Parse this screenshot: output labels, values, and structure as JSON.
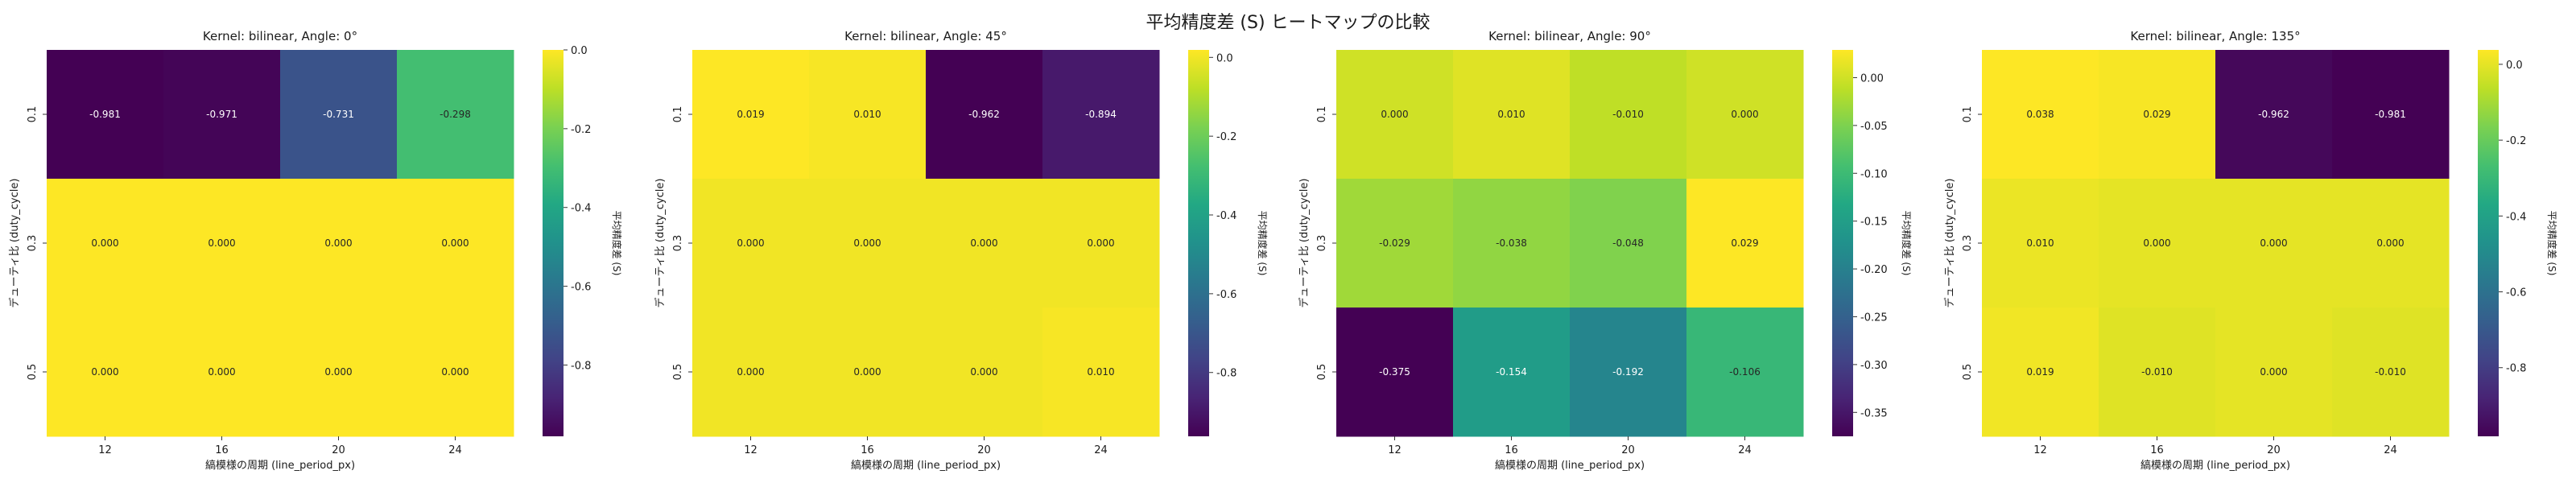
{
  "suptitle": "平均精度差 (S) ヒートマップの比較",
  "chart_data": [
    {
      "type": "heatmap",
      "title": "Kernel: bilinear, Angle: 0°",
      "xlabel": "縞模様の周期 (line_period_px)",
      "ylabel": "デューティ比 (duty_cycle)",
      "colorbar_label": "平均精度差 (S)",
      "x_categories": [
        "12",
        "16",
        "20",
        "24"
      ],
      "y_categories": [
        "0.1",
        "0.3",
        "0.5"
      ],
      "values": [
        [
          -0.981,
          -0.971,
          -0.731,
          -0.298
        ],
        [
          0.0,
          0.0,
          0.0,
          0.0
        ],
        [
          0.0,
          0.0,
          0.0,
          0.0
        ]
      ],
      "labels": [
        [
          "-0.981",
          "-0.971",
          "-0.731",
          "-0.298"
        ],
        [
          "0.000",
          "0.000",
          "0.000",
          "0.000"
        ],
        [
          "0.000",
          "0.000",
          "0.000",
          "0.000"
        ]
      ],
      "vmin": -0.981,
      "vmax": 0.0,
      "colorbar_ticks": [
        "0.0",
        "-0.2",
        "-0.4",
        "-0.6",
        "-0.8"
      ],
      "colormap": "viridis"
    },
    {
      "type": "heatmap",
      "title": "Kernel: bilinear, Angle: 45°",
      "xlabel": "縞模様の周期 (line_period_px)",
      "ylabel": "デューティ比 (duty_cycle)",
      "colorbar_label": "平均精度差 (S)",
      "x_categories": [
        "12",
        "16",
        "20",
        "24"
      ],
      "y_categories": [
        "0.1",
        "0.3",
        "0.5"
      ],
      "values": [
        [
          0.019,
          0.01,
          -0.962,
          -0.894
        ],
        [
          0.0,
          0.0,
          0.0,
          0.0
        ],
        [
          0.0,
          0.0,
          0.0,
          0.01
        ]
      ],
      "labels": [
        [
          "0.019",
          "0.010",
          "-0.962",
          "-0.894"
        ],
        [
          "0.000",
          "0.000",
          "0.000",
          "0.000"
        ],
        [
          "0.000",
          "0.000",
          "0.000",
          "0.010"
        ]
      ],
      "vmin": -0.962,
      "vmax": 0.019,
      "colorbar_ticks": [
        "0.0",
        "-0.2",
        "-0.4",
        "-0.6",
        "-0.8"
      ],
      "colormap": "viridis"
    },
    {
      "type": "heatmap",
      "title": "Kernel: bilinear, Angle: 90°",
      "xlabel": "縞模様の周期 (line_period_px)",
      "ylabel": "デューティ比 (duty_cycle)",
      "colorbar_label": "平均精度差 (S)",
      "x_categories": [
        "12",
        "16",
        "20",
        "24"
      ],
      "y_categories": [
        "0.1",
        "0.3",
        "0.5"
      ],
      "values": [
        [
          0.0,
          0.01,
          -0.01,
          0.0
        ],
        [
          -0.029,
          -0.038,
          -0.048,
          0.029
        ],
        [
          -0.375,
          -0.154,
          -0.192,
          -0.106
        ]
      ],
      "labels": [
        [
          "0.000",
          "0.010",
          "-0.010",
          "0.000"
        ],
        [
          "-0.029",
          "-0.038",
          "-0.048",
          "0.029"
        ],
        [
          "-0.375",
          "-0.154",
          "-0.192",
          "-0.106"
        ]
      ],
      "vmin": -0.375,
      "vmax": 0.029,
      "colorbar_ticks": [
        "0.00",
        "-0.05",
        "-0.10",
        "-0.15",
        "-0.20",
        "-0.25",
        "-0.30",
        "-0.35"
      ],
      "colormap": "viridis"
    },
    {
      "type": "heatmap",
      "title": "Kernel: bilinear, Angle: 135°",
      "xlabel": "縞模様の周期 (line_period_px)",
      "ylabel": "デューティ比 (duty_cycle)",
      "colorbar_label": "平均精度差 (S)",
      "x_categories": [
        "12",
        "16",
        "20",
        "24"
      ],
      "y_categories": [
        "0.1",
        "0.3",
        "0.5"
      ],
      "values": [
        [
          0.038,
          0.029,
          -0.962,
          -0.981
        ],
        [
          0.01,
          0.0,
          0.0,
          0.0
        ],
        [
          0.019,
          -0.01,
          0.0,
          -0.01
        ]
      ],
      "labels": [
        [
          "0.038",
          "0.029",
          "-0.962",
          "-0.981"
        ],
        [
          "0.010",
          "0.000",
          "0.000",
          "0.000"
        ],
        [
          "0.019",
          "-0.010",
          "0.000",
          "-0.010"
        ]
      ],
      "vmin": -0.981,
      "vmax": 0.038,
      "colorbar_ticks": [
        "0.0",
        "-0.2",
        "-0.4",
        "-0.6",
        "-0.8"
      ],
      "colormap": "viridis"
    }
  ]
}
